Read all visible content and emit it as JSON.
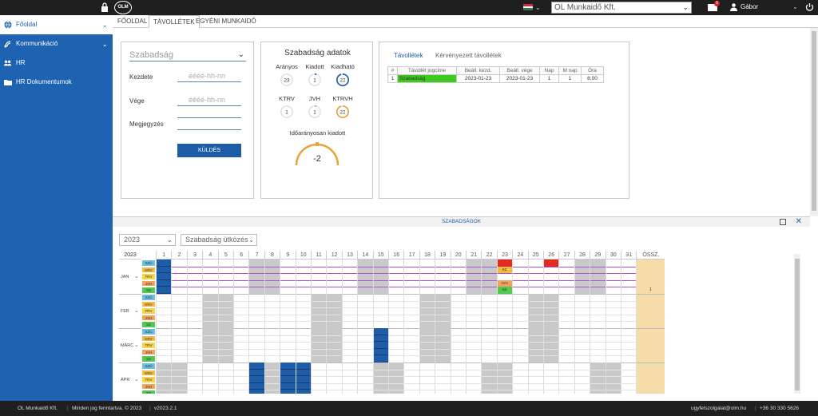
{
  "topbar": {
    "logo_text": "OLM",
    "company_value": "OL Munkaidő Kft.",
    "mail_badge": "0",
    "user_name": "Gábor",
    "lock_icon": "lock-icon",
    "flag_icon": "hungarian-flag-icon",
    "mail_icon": "mail-icon",
    "user_icon": "user-icon",
    "power_icon": "power-icon"
  },
  "sidebar": {
    "items": [
      {
        "label": "Főoldal",
        "icon": "globe-icon",
        "active": true
      },
      {
        "label": "Kommunikáció",
        "icon": "satellite-icon",
        "active": false
      },
      {
        "label": "HR",
        "icon": "people-icon",
        "active": false
      },
      {
        "label": "HR Dokumentumok",
        "icon": "folder-icon",
        "active": false
      }
    ]
  },
  "tabs": [
    {
      "label": "FŐOLDAL"
    },
    {
      "label": "TÁVOLLÉTEK"
    },
    {
      "label": "EGYÉNI MUNKAIDŐ"
    }
  ],
  "form": {
    "type_placeholder": "Szabadság",
    "start_label": "Kezdete",
    "start_placeholder": "éééé-hh-nn",
    "end_label": "Vége",
    "end_placeholder": "éééé-hh-nn",
    "note_label": "Megjegyzés",
    "send_label": "KÜLDÉS"
  },
  "stats": {
    "title": "Szabadság adatok",
    "items": [
      {
        "label": "Arányos",
        "value": "23",
        "fraction": 0.0,
        "color": "#1e5ca8"
      },
      {
        "label": "Kiadott",
        "value": "1",
        "fraction": 0.05,
        "color": "#1e5ca8"
      },
      {
        "label": "Kiadható",
        "value": "22",
        "fraction": 0.95,
        "color": "#1e5ca8"
      },
      {
        "label": "KTRV",
        "value": "1",
        "fraction": 0.0,
        "color": "#e8a33c"
      },
      {
        "label": "JVH",
        "value": "1",
        "fraction": 0.05,
        "color": "#e8a33c"
      },
      {
        "label": "KTRVH",
        "value": "22",
        "fraction": 0.95,
        "color": "#e8a33c"
      }
    ],
    "idoarany_label": "Időarányosan kiadott",
    "idoarany_value": "-2"
  },
  "absence": {
    "tabs": [
      "Távollétek",
      "Kérvényezett távollétek"
    ],
    "columns": [
      "#",
      "Távollét jogcíme",
      "Beáll. kezd.",
      "Beáll. vége",
      "Nap",
      "M nap",
      "Óra"
    ],
    "rows": [
      [
        "1",
        "Szabadság",
        "2023-01-23",
        "2023-01-23",
        "1",
        "1",
        "8:00"
      ]
    ]
  },
  "calendar": {
    "header_title": "SZABADSÁGOK",
    "year_select": "2023",
    "conflict_select": "Szabadság ütközés",
    "year": "2023",
    "days": [
      "1",
      "2",
      "3",
      "4",
      "5",
      "6",
      "7",
      "8",
      "9",
      "10",
      "11",
      "12",
      "13",
      "14",
      "15",
      "16",
      "17",
      "18",
      "19",
      "20",
      "21",
      "22",
      "23",
      "24",
      "25",
      "26",
      "27",
      "28",
      "29",
      "30",
      "31"
    ],
    "total_label": "ÖSSZ.",
    "row_types": [
      "SZÜ",
      "KRV",
      "TRV",
      "JVH",
      "SZ"
    ],
    "months": [
      {
        "label": "JAN",
        "weekend_days": [
          7,
          8,
          14,
          15,
          21,
          22,
          28,
          29
        ],
        "marked": {
          "SZÜ": [
            1
          ],
          "KRV": [
            1
          ],
          "TRV": [
            1
          ],
          "JVH": [
            1
          ],
          "SZ": [
            1
          ]
        },
        "red_top": [
          23,
          26
        ],
        "cell_labels": {
          "SZ": {
            "23": "SZ"
          },
          "JVH": {
            "23": "JVH"
          },
          "KRV": {
            "23": "SZ"
          }
        },
        "total": "1",
        "holiday_lines": true
      },
      {
        "label": "FEB",
        "weekend_days": [
          4,
          5,
          11,
          12,
          18,
          19,
          25,
          26
        ],
        "marked": {},
        "total": ""
      },
      {
        "label": "MÁRC",
        "weekend_days": [
          4,
          5,
          11,
          12,
          18,
          19,
          25,
          26
        ],
        "marked": {
          "SZÜ": [
            15
          ],
          "KRV": [
            15
          ],
          "TRV": [
            15
          ],
          "JVH": [
            15
          ],
          "SZ": [
            15
          ]
        },
        "total": ""
      },
      {
        "label": "ÁPR",
        "weekend_days": [
          1,
          2,
          8,
          9,
          15,
          16,
          22,
          23,
          29,
          30
        ],
        "marked": {
          "SZÜ": [
            7,
            9,
            10
          ],
          "KRV": [
            7,
            9,
            10
          ],
          "TRV": [
            7,
            9,
            10
          ],
          "JVH": [
            7,
            9,
            10
          ],
          "SZ": [
            7,
            9,
            10
          ]
        },
        "total": ""
      }
    ]
  },
  "footer": {
    "company": "OL Munkaidő Kft.",
    "rights": "Minden jog fenntartva. © 2023",
    "version": "v2023.2.1",
    "email": "ugyfelszolgalat@olm.hu",
    "phone": "+36 30 330 5626"
  }
}
